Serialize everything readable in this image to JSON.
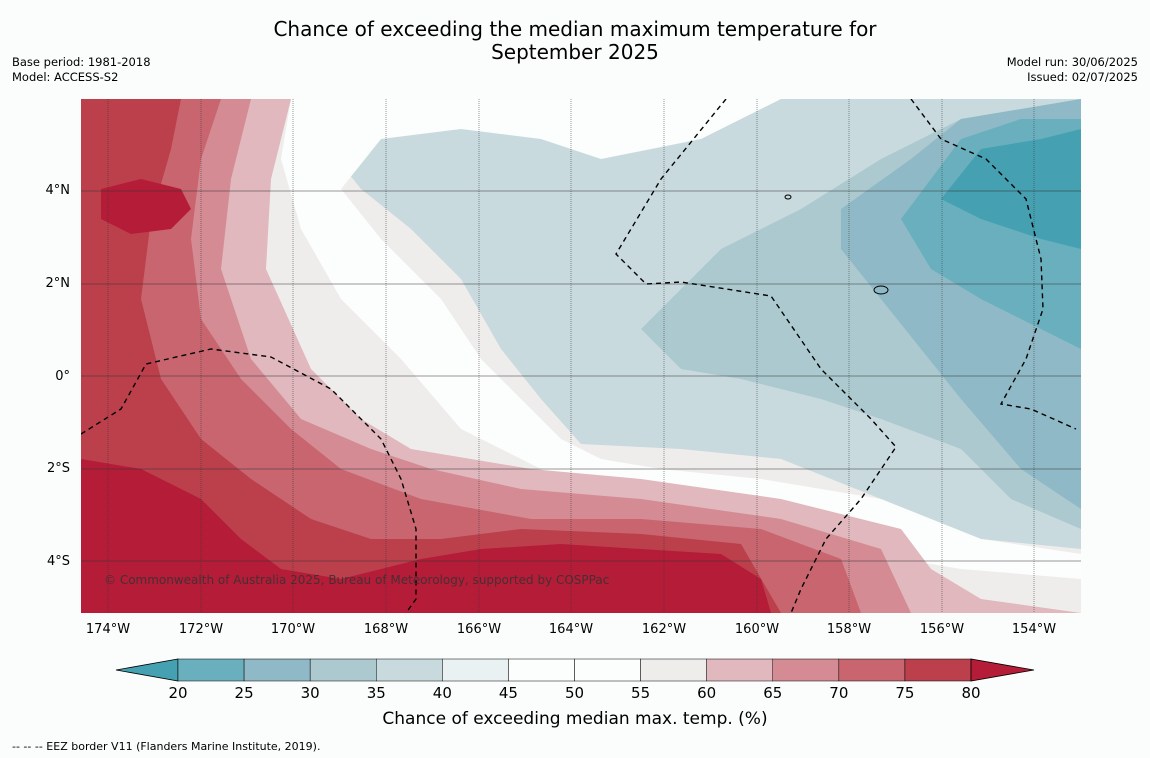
{
  "title_line1": "Chance of exceeding the median maximum temperature for",
  "title_line2": "September 2025",
  "meta_left": {
    "base_period": "Base period: 1981-2018",
    "model": "Model: ACCESS-S2"
  },
  "meta_right": {
    "model_run": "Model run: 30/06/2025",
    "issued": "Issued: 02/07/2025"
  },
  "latitude_labels": [
    "4°N",
    "2°N",
    "0°",
    "2°S",
    "4°S"
  ],
  "longitude_labels": [
    "174°W",
    "172°W",
    "170°W",
    "168°W",
    "166°W",
    "164°W",
    "162°W",
    "160°W",
    "158°W",
    "156°W",
    "154°W"
  ],
  "credit": "© Commonwealth of Australia 2025, Bureau of Meteorology, supported by COSPPac",
  "colorbar": {
    "ticks": [
      "20",
      "25",
      "30",
      "35",
      "40",
      "45",
      "50",
      "55",
      "60",
      "65",
      "70",
      "75",
      "80"
    ],
    "label": "Chance of exceeding median max. temp. (%)",
    "colors": [
      "#45a0b1",
      "#6aafbd",
      "#8fb9c6",
      "#abc9cf",
      "#c8dade",
      "#e9f1f3",
      "#fcfdfd",
      "#fcfdfd",
      "#efedec",
      "#e0b8bd",
      "#d48b94",
      "#c8656f",
      "#bc3f4c",
      "#b51c38"
    ]
  },
  "footnote": "--  --  -- EEZ border V11 (Flanders Marine Institute, 2019)."
}
